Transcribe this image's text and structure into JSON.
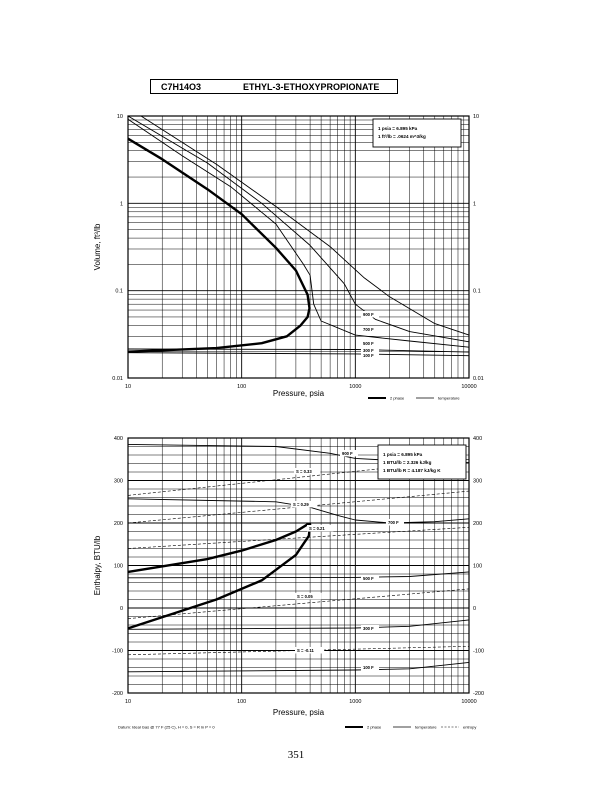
{
  "header": {
    "formula": "C7H14O3",
    "compound": "ETHYL-3-ETHOXYPROPIONATE"
  },
  "page_number": "351",
  "colors": {
    "ink": "#000000",
    "grid": "#000000",
    "background": "#ffffff"
  },
  "chart_data": [
    {
      "type": "line",
      "title": "",
      "xlabel": "Pressure,  psia",
      "ylabel": "Volume, ft^3/lb",
      "x_scale": "log",
      "y_scale": "log",
      "xlim": [
        10,
        10000
      ],
      "ylim": [
        0.01,
        10
      ],
      "grid": true,
      "x_ticks": [
        "10",
        "100",
        "1000",
        "10000"
      ],
      "y_ticks_left": [
        "0.01",
        "0.1",
        "1",
        "10"
      ],
      "y_ticks_right": [
        "0.01",
        "0.1",
        "1",
        "10"
      ],
      "legend_box": [
        "1 psia  =  6.895 kPa",
        "1 ft^3/lb  =  .0624 m^3/kg"
      ],
      "legend": [
        "2 phase",
        "temperature"
      ],
      "series": [
        {
          "name": "2 phase",
          "style": "thick",
          "points": [
            [
              10,
              5.5
            ],
            [
              20,
              3.2
            ],
            [
              50,
              1.45
            ],
            [
              100,
              0.75
            ],
            [
              200,
              0.31
            ],
            [
              300,
              0.17
            ],
            [
              380,
              0.09
            ],
            [
              395,
              0.063
            ],
            [
              380,
              0.05
            ],
            [
              330,
              0.04
            ],
            [
              250,
              0.03
            ],
            [
              150,
              0.025
            ],
            [
              60,
              0.022
            ],
            [
              10,
              0.02
            ]
          ]
        },
        {
          "label": "100 F",
          "points": [
            [
              10,
              0.0195
            ],
            [
              1000,
              0.0189
            ],
            [
              10000,
              0.018
            ]
          ]
        },
        {
          "label": "300 F",
          "points": [
            [
              10,
              0.0215
            ],
            [
              1000,
              0.0212
            ],
            [
              10000,
              0.0198
            ]
          ]
        },
        {
          "label": "500 F",
          "points": [
            [
              10,
              9.2
            ],
            [
              30,
              3.5
            ],
            [
              80,
              1.55
            ],
            [
              200,
              0.58
            ],
            [
              350,
              0.2
            ],
            [
              400,
              0.15
            ],
            [
              430,
              0.07
            ],
            [
              500,
              0.045
            ],
            [
              1000,
              0.031
            ],
            [
              3000,
              0.0265
            ],
            [
              10000,
              0.0225
            ]
          ]
        },
        {
          "label": "700 F",
          "points": [
            [
              10,
              10
            ],
            [
              50,
              2.9
            ],
            [
              150,
              1.0
            ],
            [
              400,
              0.33
            ],
            [
              800,
              0.12
            ],
            [
              1000,
              0.07
            ],
            [
              1500,
              0.047
            ],
            [
              3000,
              0.034
            ],
            [
              10000,
              0.026
            ]
          ]
        },
        {
          "label": "900 F",
          "points": [
            [
              13,
              10
            ],
            [
              60,
              2.8
            ],
            [
              200,
              0.92
            ],
            [
              600,
              0.32
            ],
            [
              1200,
              0.14
            ],
            [
              2000,
              0.085
            ],
            [
              5000,
              0.042
            ],
            [
              10000,
              0.031
            ]
          ]
        }
      ]
    },
    {
      "type": "line",
      "title": "",
      "xlabel": "Pressure,  psia",
      "ylabel": "Enthalpy, BTU/lb",
      "x_scale": "log",
      "xlim": [
        10,
        10000
      ],
      "ylim": [
        -200,
        400
      ],
      "grid": true,
      "x_ticks": [
        "10",
        "100",
        "1000",
        "10000"
      ],
      "y_ticks_left": [
        "-200",
        "-100",
        "0",
        "100",
        "200",
        "300",
        "400"
      ],
      "y_ticks_right": [
        "-200",
        "-100",
        "0",
        "100",
        "200",
        "300",
        "400"
      ],
      "legend_box": [
        "1 psia  =  6.895 kPa",
        "1 BTU/lb  =  2.326 kJ/kg",
        "1 BTU/lb R  =  4.187 kJ/kg K"
      ],
      "legend": [
        "2 phase",
        "temperature",
        "entropy"
      ],
      "footnote": "Datum: Ideal Gas @ 77 F (25 C),  H = 0,  S = R ln P = 0",
      "series": [
        {
          "name": "2 phase",
          "style": "thick",
          "points": [
            [
              10,
              85
            ],
            [
              50,
              115
            ],
            [
              100,
              135
            ],
            [
              200,
              160
            ],
            [
              300,
              180
            ],
            [
              380,
              197
            ],
            [
              400,
              197
            ],
            [
              390,
              170
            ],
            [
              300,
              125
            ],
            [
              150,
              65
            ],
            [
              60,
              20
            ],
            [
              10,
              -48
            ]
          ]
        },
        {
          "label": "100 F",
          "style": "temperature",
          "points": [
            [
              10,
              -150
            ],
            [
              1000,
              -146
            ],
            [
              3000,
              -143
            ],
            [
              10000,
              -128
            ]
          ]
        },
        {
          "label": "300 F",
          "style": "temperature",
          "points": [
            [
              10,
              -50
            ],
            [
              1000,
              -47
            ],
            [
              3000,
              -43
            ],
            [
              10000,
              -28
            ]
          ]
        },
        {
          "label": "500 F",
          "style": "temperature",
          "points": [
            [
              10,
              71
            ],
            [
              1000,
              72
            ],
            [
              3000,
              74
            ],
            [
              10000,
              85
            ]
          ]
        },
        {
          "label": "700 F",
          "style": "temperature",
          "points": [
            [
              10,
              257
            ],
            [
              200,
              250
            ],
            [
              400,
              237
            ],
            [
              700,
              218
            ],
            [
              1000,
              207
            ],
            [
              2000,
              200
            ],
            [
              5000,
              203
            ],
            [
              10000,
              210
            ]
          ]
        },
        {
          "label": "900 F",
          "style": "temperature",
          "points": [
            [
              10,
              385
            ],
            [
              200,
              380
            ],
            [
              600,
              364
            ],
            [
              1000,
              352
            ],
            [
              3000,
              345
            ],
            [
              10000,
              342
            ]
          ]
        },
        {
          "label": "S = -0.11",
          "style": "entropy",
          "points": [
            [
              10,
              -110
            ],
            [
              10000,
              -90
            ]
          ]
        },
        {
          "label": "S = 0.05",
          "style": "entropy",
          "points": [
            [
              10,
              -25
            ],
            [
              10000,
              45
            ]
          ]
        },
        {
          "label": "S = 0.21",
          "style": "entropy",
          "points": [
            [
              10,
              140
            ],
            [
              10000,
              190
            ]
          ]
        },
        {
          "label": "S = 0.29",
          "style": "entropy",
          "points": [
            [
              10,
              200
            ],
            [
              10000,
              275
            ]
          ]
        },
        {
          "label": "S = 0.33",
          "style": "entropy",
          "points": [
            [
              10,
              265
            ],
            [
              10000,
              350
            ]
          ]
        }
      ]
    }
  ]
}
